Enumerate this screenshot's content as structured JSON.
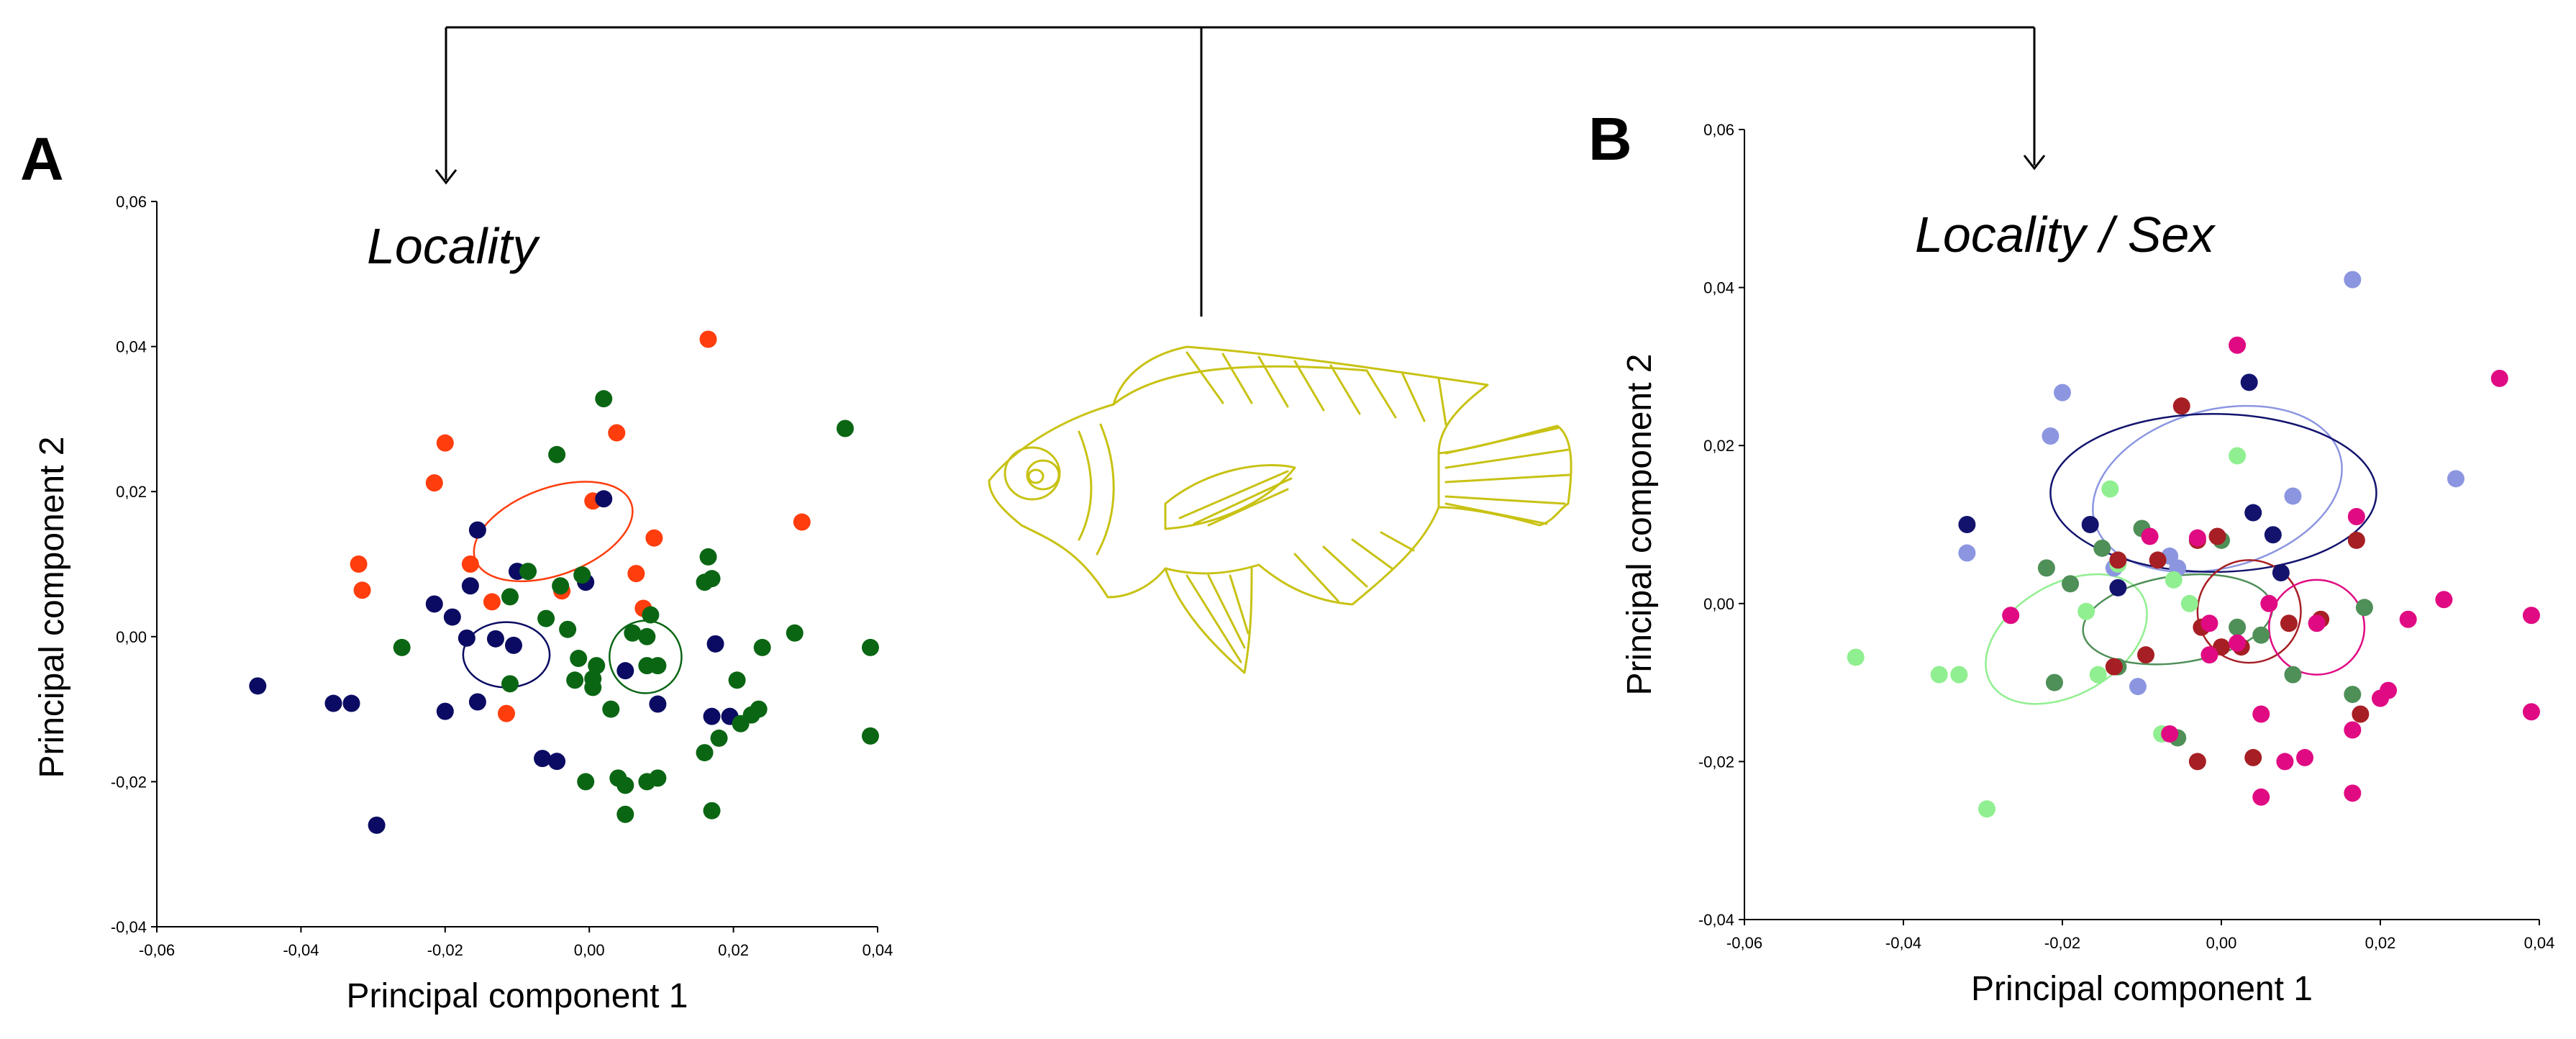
{
  "chart_data": [
    {
      "type": "scatter",
      "panel": "A",
      "title": "Locality",
      "xlabel": "Principal component 1",
      "ylabel": "Principal component 2",
      "xlim": [
        -0.06,
        0.04
      ],
      "ylim": [
        -0.04,
        0.06
      ],
      "xticks": [
        "-0,06",
        "-0,04",
        "-0,02",
        "0,00",
        "0,02",
        "0,04"
      ],
      "yticks": [
        "-0,04",
        "-0,02",
        "0,00",
        "0,02",
        "0,04",
        "0,06"
      ],
      "grid": false,
      "series": [
        {
          "color": "#ff3d0d",
          "points": [
            [
              0.0165,
              0.041
            ],
            [
              -0.02,
              0.0267
            ],
            [
              -0.0215,
              0.0212
            ],
            [
              0.0038,
              0.0281
            ],
            [
              0.0295,
              0.0158
            ],
            [
              -0.032,
              0.01
            ],
            [
              -0.0315,
              0.0064
            ],
            [
              -0.0165,
              0.01
            ],
            [
              -0.0135,
              0.0048
            ],
            [
              0.009,
              0.0136
            ],
            [
              0.0065,
              0.0087
            ],
            [
              0.0005,
              0.0187
            ],
            [
              -0.0038,
              0.0063
            ],
            [
              -0.0115,
              -0.0106
            ],
            [
              0.0075,
              0.0039
            ]
          ],
          "ellipse": {
            "cx": -0.005,
            "cy": 0.0145,
            "rx": 0.0115,
            "ry": 0.006,
            "angle": -20
          }
        },
        {
          "color": "#0b0b63",
          "points": [
            [
              -0.046,
              -0.0068
            ],
            [
              -0.0355,
              -0.0092
            ],
            [
              -0.033,
              -0.0092
            ],
            [
              -0.0295,
              -0.026
            ],
            [
              -0.02,
              -0.0103
            ],
            [
              -0.019,
              0.0027
            ],
            [
              -0.0215,
              0.0045
            ],
            [
              -0.0155,
              0.0147
            ],
            [
              -0.0165,
              0.007
            ],
            [
              -0.013,
              -0.0003
            ],
            [
              -0.0105,
              -0.0012
            ],
            [
              -0.0155,
              -0.009
            ],
            [
              -0.01,
              0.009
            ],
            [
              -0.0065,
              -0.0168
            ],
            [
              -0.0045,
              -0.0172
            ],
            [
              0.002,
              0.019
            ],
            [
              0.0095,
              -0.0093
            ],
            [
              0.005,
              -0.0047
            ],
            [
              0.0175,
              -0.001
            ],
            [
              0.0195,
              -0.011
            ],
            [
              0.017,
              -0.011
            ],
            [
              -0.0005,
              0.0075
            ],
            [
              -0.017,
              -0.0002
            ]
          ],
          "ellipse": {
            "cx": -0.0115,
            "cy": -0.0025,
            "rx": 0.006,
            "ry": 0.0045,
            "angle": 0
          }
        },
        {
          "color": "#0b6614",
          "points": [
            [
              0.0355,
              0.0287
            ],
            [
              0.002,
              0.0328
            ],
            [
              -0.0045,
              0.0251
            ],
            [
              0.0165,
              0.011
            ],
            [
              0.017,
              0.008
            ],
            [
              0.016,
              0.0075
            ],
            [
              0.039,
              -0.0015
            ],
            [
              0.039,
              -0.0137
            ],
            [
              0.0285,
              0.0005
            ],
            [
              0.024,
              -0.0015
            ],
            [
              0.0205,
              -0.006
            ],
            [
              0.0225,
              -0.0108
            ],
            [
              0.021,
              -0.012
            ],
            [
              0.0235,
              -0.01
            ],
            [
              0.018,
              -0.014
            ],
            [
              0.016,
              -0.016
            ],
            [
              0.017,
              -0.024
            ],
            [
              0.0095,
              -0.0195
            ],
            [
              0.008,
              -0.02
            ],
            [
              0.005,
              -0.0205
            ],
            [
              0.005,
              -0.0245
            ],
            [
              0.004,
              -0.0195
            ],
            [
              0.003,
              -0.01
            ],
            [
              0.0005,
              -0.0058
            ],
            [
              0.001,
              -0.004
            ],
            [
              -0.0015,
              -0.003
            ],
            [
              -0.002,
              -0.006
            ],
            [
              -0.004,
              0.007
            ],
            [
              -0.006,
              0.0025
            ],
            [
              -0.0085,
              0.009
            ],
            [
              -0.011,
              0.0055
            ],
            [
              -0.003,
              0.001
            ],
            [
              -0.001,
              0.0085
            ],
            [
              0.006,
              0.0005
            ],
            [
              0.008,
              0.0
            ],
            [
              0.008,
              -0.004
            ],
            [
              0.0085,
              0.003
            ],
            [
              -0.011,
              -0.0065
            ],
            [
              -0.026,
              -0.0015
            ],
            [
              -0.0005,
              -0.02
            ],
            [
              0.0095,
              -0.004
            ],
            [
              0.0005,
              -0.007
            ]
          ],
          "ellipse": {
            "cx": 0.0078,
            "cy": -0.0028,
            "rx": 0.005,
            "ry": 0.005,
            "angle": 0
          }
        }
      ]
    },
    {
      "type": "scatter",
      "panel": "B",
      "title": "Locality / Sex",
      "xlabel": "Principal component 1",
      "ylabel": "Principal component 2",
      "xlim": [
        -0.06,
        0.04
      ],
      "ylim": [
        -0.04,
        0.06
      ],
      "xticks": [
        "-0,06",
        "-0,04",
        "-0,02",
        "0,00",
        "0,02",
        "0,04"
      ],
      "yticks": [
        "-0,04",
        "-0,02",
        "0,00",
        "0,02",
        "0,04",
        "0,06"
      ],
      "grid": false,
      "series": [
        {
          "color": "#8c96e0",
          "points": [
            [
              0.0165,
              0.041
            ],
            [
              -0.02,
              0.0267
            ],
            [
              -0.0215,
              0.0212
            ],
            [
              0.0295,
              0.0158
            ],
            [
              0.009,
              0.0136
            ],
            [
              -0.032,
              0.0064
            ],
            [
              -0.0065,
              0.006
            ],
            [
              -0.0055,
              0.0045
            ],
            [
              -0.0135,
              0.0045
            ],
            [
              -0.0105,
              -0.0105
            ]
          ],
          "ellipse": {
            "cx": -0.0005,
            "cy": 0.0145,
            "rx": 0.016,
            "ry": 0.01,
            "angle": -15
          }
        },
        {
          "color": "#13136e",
          "points": [
            [
              0.0035,
              0.028
            ],
            [
              -0.032,
              0.01
            ],
            [
              -0.0165,
              0.01
            ],
            [
              0.004,
              0.0115
            ],
            [
              0.0065,
              0.0087
            ],
            [
              0.0075,
              0.0039
            ],
            [
              -0.013,
              0.002
            ]
          ],
          "ellipse": {
            "cx": -0.001,
            "cy": 0.014,
            "rx": 0.0205,
            "ry": 0.01,
            "angle": 0
          }
        },
        {
          "color": "#90ef90",
          "points": [
            [
              -0.046,
              -0.0068
            ],
            [
              -0.0355,
              -0.009
            ],
            [
              -0.033,
              -0.009
            ],
            [
              -0.0295,
              -0.026
            ],
            [
              -0.0155,
              -0.009
            ],
            [
              -0.017,
              -0.001
            ],
            [
              -0.014,
              0.0145
            ],
            [
              -0.006,
              0.003
            ],
            [
              -0.004,
              0.0
            ],
            [
              0.002,
              0.0187
            ],
            [
              -0.0075,
              -0.0165
            ],
            [
              -0.013,
              0.005
            ]
          ],
          "ellipse": {
            "cx": -0.0195,
            "cy": -0.0045,
            "rx": 0.011,
            "ry": 0.007,
            "angle": -30
          }
        },
        {
          "color": "#4f8f58",
          "points": [
            [
              -0.022,
              0.0045
            ],
            [
              -0.019,
              0.0025
            ],
            [
              -0.015,
              0.007
            ],
            [
              -0.01,
              0.0095
            ],
            [
              -0.021,
              -0.01
            ],
            [
              -0.013,
              -0.008
            ],
            [
              -0.0055,
              -0.017
            ],
            [
              0.0,
              0.008
            ],
            [
              0.002,
              -0.003
            ],
            [
              0.005,
              -0.004
            ],
            [
              0.009,
              -0.009
            ],
            [
              0.0165,
              -0.0115
            ],
            [
              0.018,
              -0.0005
            ]
          ],
          "ellipse": {
            "cx": -0.0055,
            "cy": -0.002,
            "rx": 0.012,
            "ry": 0.0055,
            "angle": -8
          }
        },
        {
          "color": "#a61f24",
          "points": [
            [
              -0.005,
              0.025
            ],
            [
              -0.0005,
              0.0085
            ],
            [
              -0.003,
              0.008
            ],
            [
              -0.008,
              0.0055
            ],
            [
              -0.013,
              0.0055
            ],
            [
              -0.0025,
              -0.003
            ],
            [
              0.0,
              -0.0055
            ],
            [
              0.0025,
              -0.0055
            ],
            [
              0.004,
              -0.0195
            ],
            [
              0.0085,
              -0.0025
            ],
            [
              0.017,
              0.008
            ],
            [
              0.0125,
              -0.002
            ],
            [
              0.0175,
              -0.014
            ],
            [
              -0.003,
              -0.02
            ],
            [
              -0.0095,
              -0.0065
            ],
            [
              -0.0135,
              -0.008
            ]
          ],
          "ellipse": {
            "cx": 0.0035,
            "cy": -0.001,
            "rx": 0.0065,
            "ry": 0.0065,
            "angle": 0
          }
        },
        {
          "color": "#e00a82",
          "points": [
            [
              0.002,
              0.0327
            ],
            [
              0.035,
              0.0285
            ],
            [
              0.039,
              -0.0015
            ],
            [
              0.039,
              -0.0137
            ],
            [
              0.028,
              0.0005
            ],
            [
              0.0235,
              -0.002
            ],
            [
              0.021,
              -0.011
            ],
            [
              0.02,
              -0.012
            ],
            [
              0.017,
              0.011
            ],
            [
              0.0165,
              -0.016
            ],
            [
              0.0165,
              -0.024
            ],
            [
              0.012,
              -0.0025
            ],
            [
              0.0105,
              -0.0195
            ],
            [
              0.008,
              -0.02
            ],
            [
              0.006,
              0.0
            ],
            [
              0.005,
              -0.014
            ],
            [
              0.005,
              -0.0245
            ],
            [
              0.002,
              -0.005
            ],
            [
              -0.0015,
              -0.0025
            ],
            [
              -0.003,
              0.0083
            ],
            [
              -0.009,
              0.0085
            ],
            [
              -0.0265,
              -0.0015
            ],
            [
              -0.0065,
              -0.0165
            ],
            [
              -0.0015,
              -0.0065
            ]
          ],
          "ellipse": {
            "cx": 0.012,
            "cy": -0.003,
            "rx": 0.006,
            "ry": 0.006,
            "angle": 0
          }
        }
      ]
    }
  ]
}
